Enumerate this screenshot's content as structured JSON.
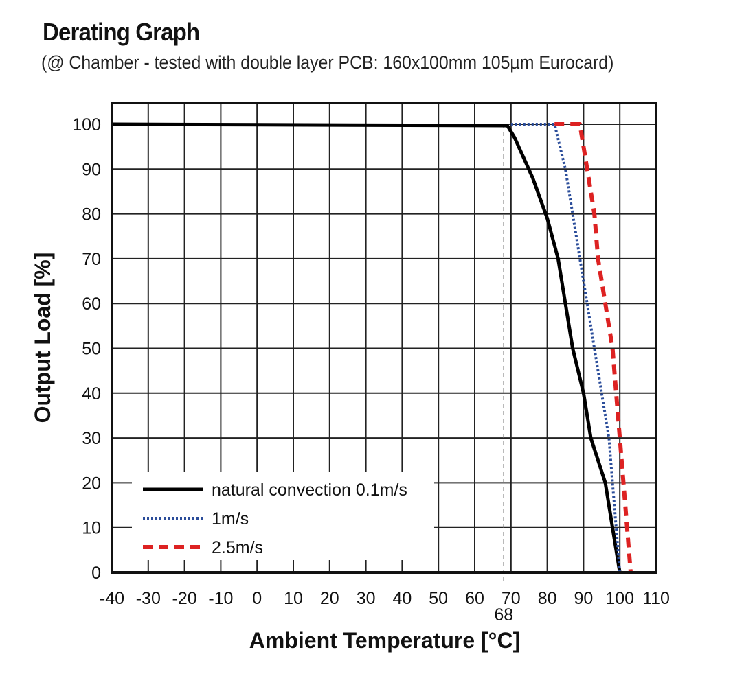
{
  "header": {
    "title": "Derating Graph",
    "subtitle": "(@ Chamber - tested with double layer PCB: 160x100mm 105µm Eurocard)"
  },
  "chart_data": {
    "type": "line",
    "xlabel": "Ambient Temperature [°C]",
    "ylabel": "Output Load [%]",
    "xlim": [
      -40,
      110
    ],
    "ylim": [
      0,
      100
    ],
    "x_ticks": [
      -40,
      -30,
      -20,
      -10,
      0,
      10,
      20,
      30,
      40,
      50,
      60,
      70,
      80,
      90,
      100,
      110
    ],
    "y_ticks": [
      0,
      10,
      20,
      30,
      40,
      50,
      60,
      70,
      80,
      90,
      100
    ],
    "grid": true,
    "legend_position": "bottom-left",
    "annotation": {
      "label": "68",
      "x": 68
    },
    "series": [
      {
        "name": "natural convection 0.1m/s",
        "style": "solid",
        "color": "#000000",
        "points": [
          [
            -40,
            100
          ],
          [
            69,
            99.7
          ],
          [
            71,
            97
          ],
          [
            76,
            88
          ],
          [
            80,
            79
          ],
          [
            83,
            70
          ],
          [
            87,
            50
          ],
          [
            90,
            40
          ],
          [
            92,
            30
          ],
          [
            96,
            20
          ],
          [
            98,
            10
          ],
          [
            100,
            0
          ]
        ]
      },
      {
        "name": "1m/s",
        "style": "dotted",
        "color": "#2b4d9a",
        "points": [
          [
            70,
            100
          ],
          [
            82,
            100
          ],
          [
            85,
            90
          ],
          [
            87,
            80
          ],
          [
            89,
            70
          ],
          [
            91,
            60
          ],
          [
            93,
            50
          ],
          [
            95,
            40
          ],
          [
            97,
            30
          ],
          [
            98,
            20
          ],
          [
            99,
            10
          ],
          [
            100,
            0
          ]
        ]
      },
      {
        "name": "2.5m/s",
        "style": "dashed",
        "color": "#dd2222",
        "points": [
          [
            82,
            100
          ],
          [
            89,
            100
          ],
          [
            91,
            90
          ],
          [
            93,
            80
          ],
          [
            94,
            70
          ],
          [
            96,
            60
          ],
          [
            98,
            50
          ],
          [
            99,
            40
          ],
          [
            100,
            30
          ],
          [
            101,
            20
          ],
          [
            102,
            10
          ],
          [
            103,
            0
          ]
        ]
      }
    ]
  }
}
